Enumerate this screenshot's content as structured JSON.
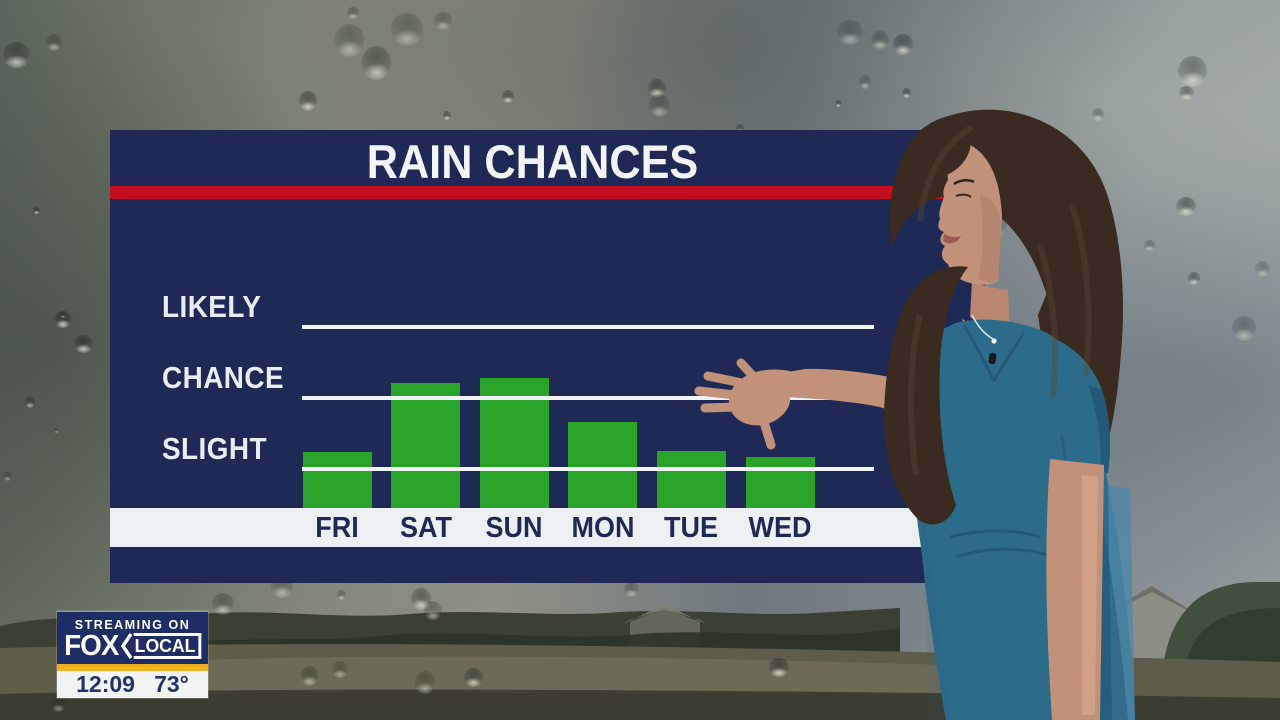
{
  "chart": {
    "title": "RAIN CHANCES"
  },
  "chart_data": {
    "type": "bar",
    "title": "RAIN CHANCES",
    "categories": [
      "FRI",
      "SAT",
      "SUN",
      "MON",
      "TUE",
      "WED"
    ],
    "values": [
      1.21,
      2.18,
      2.25,
      1.63,
      1.23,
      1.14
    ],
    "value_units": "precipitation-likelihood level (1=SLIGHT, 2=CHANCE, 3=LIKELY)",
    "y_ticks": [
      {
        "label": "SLIGHT",
        "value": 1
      },
      {
        "label": "CHANCE",
        "value": 2
      },
      {
        "label": "LIKELY",
        "value": 3
      }
    ],
    "ylim": [
      0.4,
      3.6
    ],
    "bar_color": "#2aa32a",
    "gridlines": "horizontal white line at each level, drawn over bars",
    "legend_position": "none",
    "xlabel": "",
    "ylabel": ""
  },
  "badge": {
    "streaming_on": "STREAMING ON",
    "brand_fox": "FOX",
    "brand_local": "LOCAL",
    "time": "12:09",
    "temp": "73°"
  },
  "colors": {
    "panel_navy": "#1e2a55",
    "title_stripe_red": "#c40d20",
    "bar_green": "#2aa32a",
    "level_line_white": "#f1f4f5",
    "day_strip_white": "#edf0f2",
    "badge_navy": "#1e2d66",
    "badge_gold": "#eeb01c",
    "dress_teal": "#2d6b8a"
  }
}
